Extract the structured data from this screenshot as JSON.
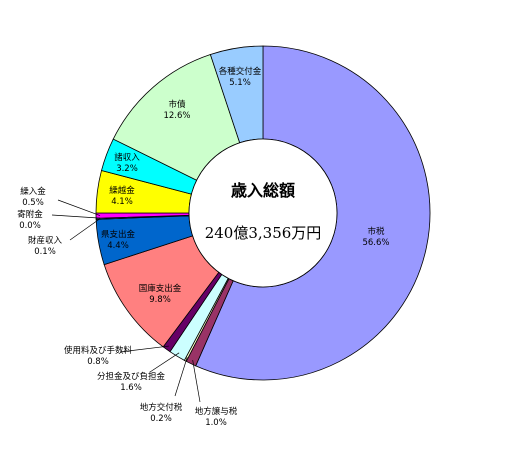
{
  "chart_data": {
    "type": "pie",
    "title": "",
    "center_title": "歳入総額",
    "center_total": "240億3,356万円",
    "series": [
      {
        "name": "市税",
        "value": 56.6,
        "value_label": "56.6%",
        "color": "#9999ff"
      },
      {
        "name": "地方譲与税",
        "value": 1.0,
        "value_label": "1.0%",
        "color": "#993366"
      },
      {
        "name": "地方交付税",
        "value": 0.2,
        "value_label": "0.2%",
        "color": "#ffffcc"
      },
      {
        "name": "分担金及び負担金",
        "value": 1.6,
        "value_label": "1.6%",
        "color": "#ccffff"
      },
      {
        "name": "使用料及び手数料",
        "value": 0.8,
        "value_label": "0.8%",
        "color": "#660066"
      },
      {
        "name": "国庫支出金",
        "value": 9.8,
        "value_label": "9.8%",
        "color": "#ff8080"
      },
      {
        "name": "県支出金",
        "value": 4.4,
        "value_label": "4.4%",
        "color": "#0066cc"
      },
      {
        "name": "財産収入",
        "value": 0.1,
        "value_label": "0.1%",
        "color": "#ccccff"
      },
      {
        "name": "寄附金",
        "value": 0.0,
        "value_label": "0.0%",
        "color": "#000080"
      },
      {
        "name": "繰入金",
        "value": 0.5,
        "value_label": "0.5%",
        "color": "#ff00ff"
      },
      {
        "name": "繰越金",
        "value": 4.1,
        "value_label": "4.1%",
        "color": "#ffff00"
      },
      {
        "name": "諸収入",
        "value": 3.2,
        "value_label": "3.2%",
        "color": "#00ffff"
      },
      {
        "name": "市債",
        "value": 12.6,
        "value_label": "12.6%",
        "color": "#ccffcc"
      },
      {
        "name": "各種交付金",
        "value": 5.1,
        "value_label": "5.1%",
        "color": "#99ccff"
      }
    ]
  }
}
